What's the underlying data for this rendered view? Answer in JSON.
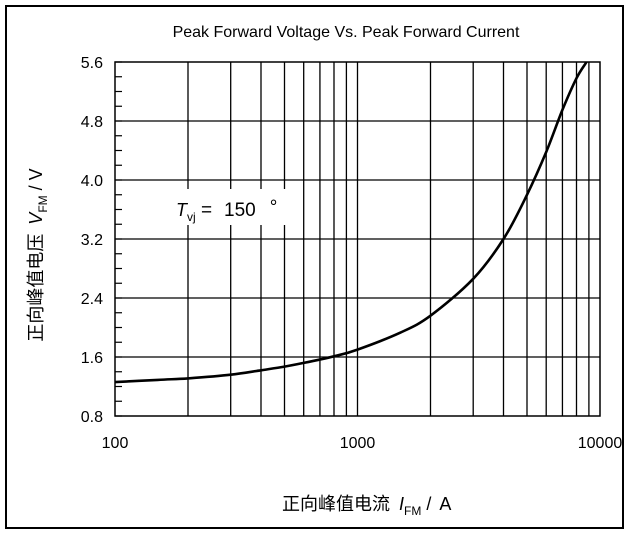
{
  "chart_data": {
    "type": "line",
    "title": "Peak Forward Voltage Vs. Peak Forward Current",
    "xscale": "log",
    "xlim": [
      100,
      10000
    ],
    "ylim": [
      0.8,
      5.6
    ],
    "x_ticks": [
      "100",
      "1000",
      "10000"
    ],
    "y_ticks": [
      "0.8",
      "1.6",
      "2.4",
      "3.2",
      "4.0",
      "4.8",
      "5.6"
    ],
    "xlabel": {
      "prefix": "正向峰值电流",
      "var": "I",
      "sub": "FM",
      "sep": " / ",
      "unit": "A"
    },
    "ylabel": {
      "prefix": "正向峰值电压",
      "var": "V",
      "sub": "FM",
      "suffix": " / V"
    },
    "annotation": {
      "var": "T",
      "sub": "vj",
      "eq": " =",
      "val": "150",
      "deg": "°"
    },
    "grid": true,
    "series": [
      {
        "x": [
          100,
          150,
          200,
          300,
          400,
          500,
          600,
          800,
          1000,
          1500,
          2000,
          3000,
          4000,
          5000,
          6000,
          7000,
          8000,
          8800
        ],
        "y": [
          1.26,
          1.29,
          1.31,
          1.36,
          1.42,
          1.47,
          1.52,
          1.61,
          1.7,
          1.93,
          2.16,
          2.66,
          3.2,
          3.8,
          4.38,
          4.95,
          5.38,
          5.6
        ]
      }
    ]
  }
}
